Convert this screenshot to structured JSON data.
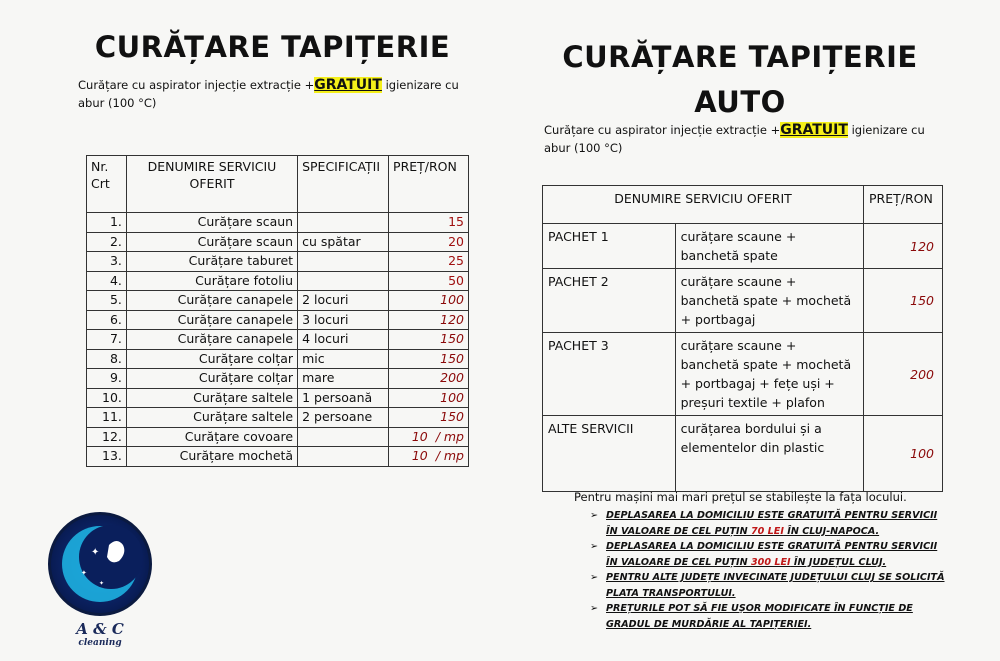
{
  "left": {
    "title": "CURĂȚARE TAPIȚERIE",
    "subtitle_pre": "Curățare cu aspirator injecție extracție +",
    "subtitle_highlight": "GRATUIT",
    "subtitle_post": " igienizare cu abur (100 °C)",
    "headers": [
      "Nr. Crt",
      "DENUMIRE SERVICIU OFERIT",
      "SPECIFICAȚII",
      "PREȚ/RON"
    ],
    "rows": [
      {
        "nr": "1.",
        "service": "Curățare scaun",
        "spec": "",
        "price": "15"
      },
      {
        "nr": "2.",
        "service": "Curățare scaun",
        "spec": "cu spătar",
        "price": "20"
      },
      {
        "nr": "3.",
        "service": "Curățare taburet",
        "spec": "",
        "price": "25"
      },
      {
        "nr": "4.",
        "service": "Curățare fotoliu",
        "spec": "",
        "price": "50"
      },
      {
        "nr": "5.",
        "service": "Curățare canapele",
        "spec": "2 locuri",
        "price": "100"
      },
      {
        "nr": "6.",
        "service": "Curățare canapele",
        "spec": "3 locuri",
        "price": "120"
      },
      {
        "nr": "7.",
        "service": "Curățare canapele",
        "spec": "4 locuri",
        "price": "150"
      },
      {
        "nr": "8.",
        "service": "Curățare colțar",
        "spec": "mic",
        "price": "150"
      },
      {
        "nr": "9.",
        "service": "Curățare colțar",
        "spec": "mare",
        "price": "200"
      },
      {
        "nr": "10.",
        "service": "Curățare saltele",
        "spec": "1 persoană",
        "price": "100"
      },
      {
        "nr": "11.",
        "service": "Curățare saltele",
        "spec": "2 persoane",
        "price": "150"
      },
      {
        "nr": "12.",
        "service": "Curățare covoare",
        "spec": "",
        "price": "10  / mp"
      },
      {
        "nr": "13.",
        "service": "Curățare mochetă",
        "spec": "",
        "price": "10  / mp"
      }
    ]
  },
  "right": {
    "title_line1": "CURĂȚARE TAPIȚERIE",
    "title_line2": "AUTO",
    "subtitle_pre": "Curățare cu aspirator injecție extracție +",
    "subtitle_highlight": "GRATUIT",
    "subtitle_post": " igienizare cu abur (100 °C)",
    "headers": [
      "DENUMIRE SERVICIU OFERIT",
      "PREȚ/RON"
    ],
    "rows": [
      {
        "name": "PACHET 1",
        "desc": "curățare scaune + banchetă spate",
        "price": "120"
      },
      {
        "name": "PACHET 2",
        "desc": "curățare scaune + banchetă spate + mochetă + portbagaj",
        "price": "150"
      },
      {
        "name": "PACHET 3",
        "desc": "curățare scaune + banchetă spate + mochetă + portbagaj + fețe uși + preșuri textile + plafon",
        "price": "200"
      },
      {
        "name": "ALTE SERVICII",
        "desc": "curățarea bordului și a elementelor din plastic",
        "price": "100"
      }
    ],
    "note": "Pentru mașini mai mari prețul se stabilește  la fața locului.",
    "bullets": [
      {
        "pre": "DEPLASAREA LA DOMICILIU ESTE GRATUITĂ PENTRU SERVICII ÎN VALOARE DE CEL PUȚIN ",
        "red": "70 LEI",
        "post": " ÎN CLUJ-NAPOCA."
      },
      {
        "pre": "DEPLASAREA LA DOMICILIU ESTE GRATUITĂ PENTRU SERVICII ÎN VALOARE DE CEL PUȚIN ",
        "red": "300 LEI",
        "post": " ÎN JUDEȚUL CLUJ."
      },
      {
        "pre": "PENTRU ALTE JUDEȚE INVECINATE JUDEȚULUI CLUJ SE SOLICITĂ PLATA TRANSPORTULUI.",
        "red": "",
        "post": ""
      },
      {
        "pre": "PREȚURILE POT SĂ FIE UȘOR MODIFICATE ÎN FUNCȚIE DE GRADUL DE MURDĂRIE AL TAPIȚERIEI.",
        "red": "",
        "post": ""
      }
    ]
  },
  "logo": {
    "text": "A & C",
    "tagline": "cleaning"
  },
  "colors": {
    "highlight": "#f5f01a",
    "price_red": "#a01010",
    "logo_blue": "#0a1f5c"
  }
}
